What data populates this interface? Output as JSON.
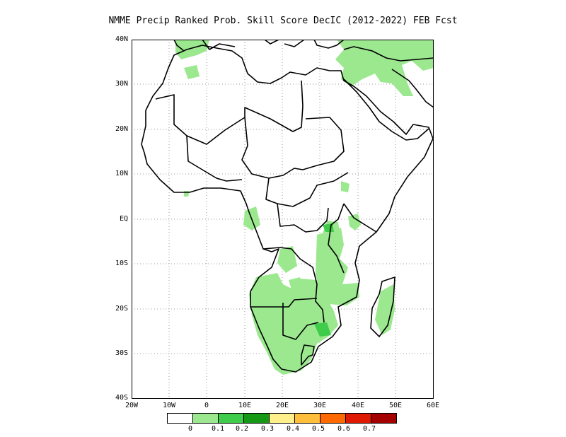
{
  "title": "NMME Precip Ranked Prob. Skill Score DecIC (2012-2022) FEB Fcst",
  "axes": {
    "lat_labels": [
      "40N",
      "30N",
      "20N",
      "10N",
      "EQ",
      "10S",
      "20S",
      "30S",
      "40S"
    ],
    "lon_labels": [
      "20W",
      "10W",
      "0",
      "10E",
      "20E",
      "30E",
      "40E",
      "50E",
      "60E"
    ]
  },
  "legend": {
    "colors": [
      "#ffffff",
      "#9be88f",
      "#3fcc4a",
      "#159915",
      "#fff08c",
      "#ffbe3c",
      "#ff6a00",
      "#e01a00",
      "#a50000"
    ],
    "values": [
      "0",
      "0.1",
      "0.2",
      "0.3",
      "0.4",
      "0.5",
      "0.6",
      "0.7"
    ]
  },
  "map": {
    "extent": {
      "lon": [
        -20,
        60
      ],
      "lat": [
        -40,
        40
      ]
    },
    "grid": "dotted",
    "projection": "lat-lon"
  }
}
